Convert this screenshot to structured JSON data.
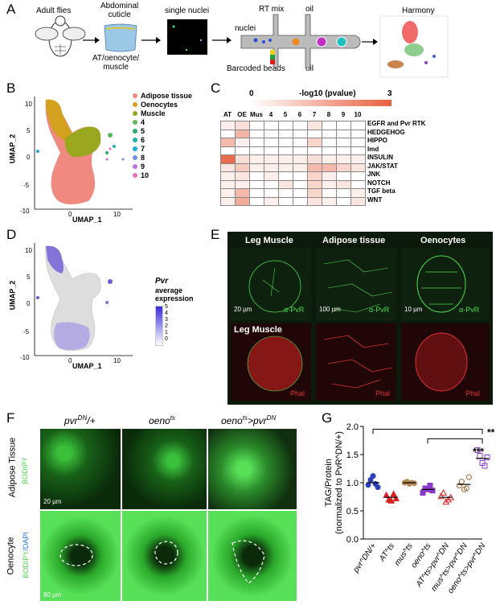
{
  "panels": {
    "A": "A",
    "B": "B",
    "C": "C",
    "D": "D",
    "E": "E",
    "F": "F",
    "G": "G"
  },
  "panelA": {
    "adult_flies": "Adult flies",
    "abdominal_cuticle": "Abdominal\ncuticle",
    "at_oeno_muscle": "AT/oenocyte/\nmuscle",
    "single_nuclei": "single nuclei",
    "rt_mix": "RT mix",
    "oil_top": "oil",
    "nuclei": "nuclei",
    "barcoded_beads": "Barcoded beads",
    "oil_bottom": "oil",
    "harmony": "Harmony"
  },
  "panelB": {
    "xlabel": "UMAP_1",
    "ylabel": "UMAP_2",
    "yticks": [
      "10",
      "5",
      "0",
      "-5",
      "-10"
    ],
    "xticks": [
      "0",
      "10"
    ],
    "legend": [
      {
        "label": "Adipose tissue",
        "color": "#f08a80"
      },
      {
        "label": "Oenocytes",
        "color": "#d4a020"
      },
      {
        "label": "Muscle",
        "color": "#9aa820"
      },
      {
        "label": "4",
        "color": "#5cb85c"
      },
      {
        "label": "5",
        "color": "#2cae6e"
      },
      {
        "label": "6",
        "color": "#20b0a8"
      },
      {
        "label": "7",
        "color": "#20a8d8"
      },
      {
        "label": "8",
        "color": "#7090e0"
      },
      {
        "label": "9",
        "color": "#c070e0"
      },
      {
        "label": "10",
        "color": "#e870c0"
      }
    ]
  },
  "panelC": {
    "scale_min": "0",
    "scale_title": "-log10 (pvalue)",
    "scale_max": "3",
    "columns": [
      "AT",
      "OE",
      "Mus",
      "4",
      "5",
      "6",
      "7",
      "8",
      "9",
      "10"
    ],
    "rows": [
      "EGFR and Pvr RTK",
      "HEDGEHOG",
      "HIPPO",
      "Imd",
      "INSULIN",
      "JAK/STAT",
      "JNK",
      "NOTCH",
      "TGF beta",
      "WNT"
    ],
    "values": [
      [
        0.3,
        0.6,
        0,
        0,
        0,
        0,
        0.5,
        0,
        0,
        0
      ],
      [
        0,
        1.4,
        0,
        0,
        0,
        0,
        0,
        0,
        0,
        0
      ],
      [
        1.3,
        0.3,
        0,
        0,
        0,
        0,
        0.8,
        0,
        0,
        0
      ],
      [
        0,
        0,
        0,
        0,
        0,
        0,
        0,
        0,
        0,
        0
      ],
      [
        2.8,
        0.6,
        0.3,
        0.3,
        0.3,
        0.3,
        0.6,
        0.3,
        0.3,
        0.3
      ],
      [
        0.5,
        1.0,
        0.3,
        0.3,
        0.3,
        0.3,
        1.3,
        1.3,
        0.8,
        0.5
      ],
      [
        0.3,
        0.5,
        0,
        0.3,
        0,
        0,
        0.8,
        0.3,
        0,
        0
      ],
      [
        0.3,
        0.3,
        0,
        0,
        0.5,
        0,
        0.8,
        0.3,
        0.5,
        0
      ],
      [
        0.3,
        1.3,
        0,
        0,
        0,
        0,
        0.8,
        0,
        0,
        0.3
      ],
      [
        0.3,
        1.6,
        0,
        0.3,
        0,
        0,
        0.5,
        0.3,
        0,
        0.5
      ]
    ]
  },
  "panelD": {
    "xlabel": "UMAP_1",
    "ylabel": "UMAP_2",
    "yticks": [
      "10",
      "5",
      "0",
      "-5",
      "-10"
    ],
    "xticks": [
      "0",
      "10"
    ],
    "legend_title_italic": "Pvr",
    "legend_title_rest": "average\nexpression",
    "scale_labels": [
      "5",
      "4",
      "3",
      "2",
      "1",
      "0"
    ]
  },
  "panelE": {
    "col_titles": [
      "Leg Muscle",
      "Adipose tissue",
      "Oenocytes"
    ],
    "bottom_title": "Leg Muscle",
    "scalebars": [
      "20 µm",
      "100 µm",
      "10 µm"
    ],
    "green_label": "α-PvR",
    "red_label": "Phal"
  },
  "panelF": {
    "col_titles": [
      "pvr",
      "DN",
      "/+",
      "oeno",
      "ts",
      "oeno",
      "ts",
      ">pvr",
      "DN"
    ],
    "row1_label": "Adipose Tissue",
    "row1_stain": "BODIPY",
    "row2_label": "Oenocyte",
    "row2_stain_a": "BODIPY",
    "row2_stain_b": "/DAPI",
    "scale1": "20 µm",
    "scale2": "80 µm"
  },
  "chart_data": {
    "type": "scatter",
    "ylabel": "TAG/Protein\n(normalized to PvR^DN/+)",
    "ylim": [
      0.0,
      2.0
    ],
    "yticks": [
      "0.0",
      "0.5",
      "1.0",
      "1.5",
      "2.0"
    ],
    "categories": [
      "pvr^DN/+",
      "AT^ts",
      "mus^ts",
      "oeno^ts",
      "AT^ts>pvr^DN",
      "mus^ts>pvr^DN",
      "oeno^ts>pvr^DN"
    ],
    "series": [
      {
        "color": "#2a3fb8",
        "marker": "circle",
        "values": [
          0.96,
          1.05,
          1.12,
          0.98,
          0.92
        ]
      },
      {
        "color": "#d82020",
        "marker": "triangle",
        "values": [
          0.78,
          0.7,
          0.68,
          0.8,
          0.72
        ]
      },
      {
        "color": "#b08a50",
        "marker": "circle",
        "values": [
          1.0,
          1.02,
          0.98,
          1.0,
          0.99
        ]
      },
      {
        "color": "#8a3ac8",
        "marker": "square",
        "values": [
          0.82,
          0.9,
          0.88,
          0.95,
          0.86
        ]
      },
      {
        "color": "#d82020",
        "marker": "triangle-open",
        "values": [
          0.76,
          0.82,
          0.66,
          0.7,
          0.74
        ]
      },
      {
        "color": "#9a6a30",
        "marker": "circle-open",
        "values": [
          0.95,
          1.02,
          0.88,
          0.9,
          1.1
        ]
      },
      {
        "color": "#8a3ac8",
        "marker": "square-open",
        "values": [
          1.58,
          1.48,
          1.35,
          1.3,
          1.45
        ]
      }
    ],
    "means": [
      1.0,
      0.74,
      1.0,
      0.88,
      0.74,
      0.97,
      1.43
    ],
    "annotations": [
      "**",
      "***"
    ]
  }
}
